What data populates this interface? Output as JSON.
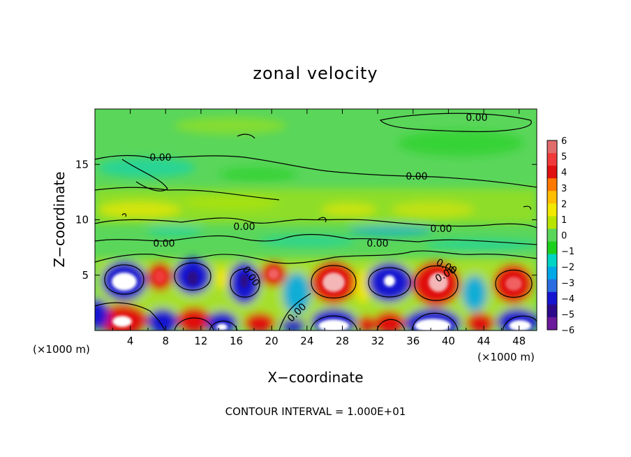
{
  "chart_data": {
    "type": "heatmap",
    "title": "zonal velocity",
    "xlabel": "X−coordinate",
    "ylabel": "Z−coordinate",
    "x_unit_left": "(×1000 m)",
    "x_unit_right": "(×1000 m)",
    "footer": "CONTOUR INTERVAL = 1.000E+01",
    "xlim": [
      0,
      50
    ],
    "ylim": [
      0,
      20
    ],
    "x_ticks": [
      "4",
      "8",
      "12",
      "16",
      "20",
      "24",
      "28",
      "32",
      "36",
      "40",
      "44",
      "48"
    ],
    "y_ticks": [
      "5",
      "10",
      "15"
    ],
    "colorbar": {
      "labels": [
        "6",
        "5",
        "4",
        "3",
        "2",
        "1",
        "0",
        "−1",
        "−2",
        "−3",
        "−4",
        "−5",
        "−6"
      ],
      "colors": [
        "#e06c6c",
        "#f03a3a",
        "#e01010",
        "#ff7800",
        "#ffbe00",
        "#f2e800",
        "#b8e400",
        "#5ad65a",
        "#1ed01e",
        "#00d4c4",
        "#00a8e8",
        "#2a6de0",
        "#1515d0",
        "#2c0a8a",
        "#6a1a9a"
      ]
    },
    "contour_labels": [
      "0.00",
      "0.00",
      "0.00",
      "0.00",
      "0.00",
      "0.00",
      "0.00",
      "0.00",
      "0.00",
      "0.00",
      "0.00"
    ]
  }
}
